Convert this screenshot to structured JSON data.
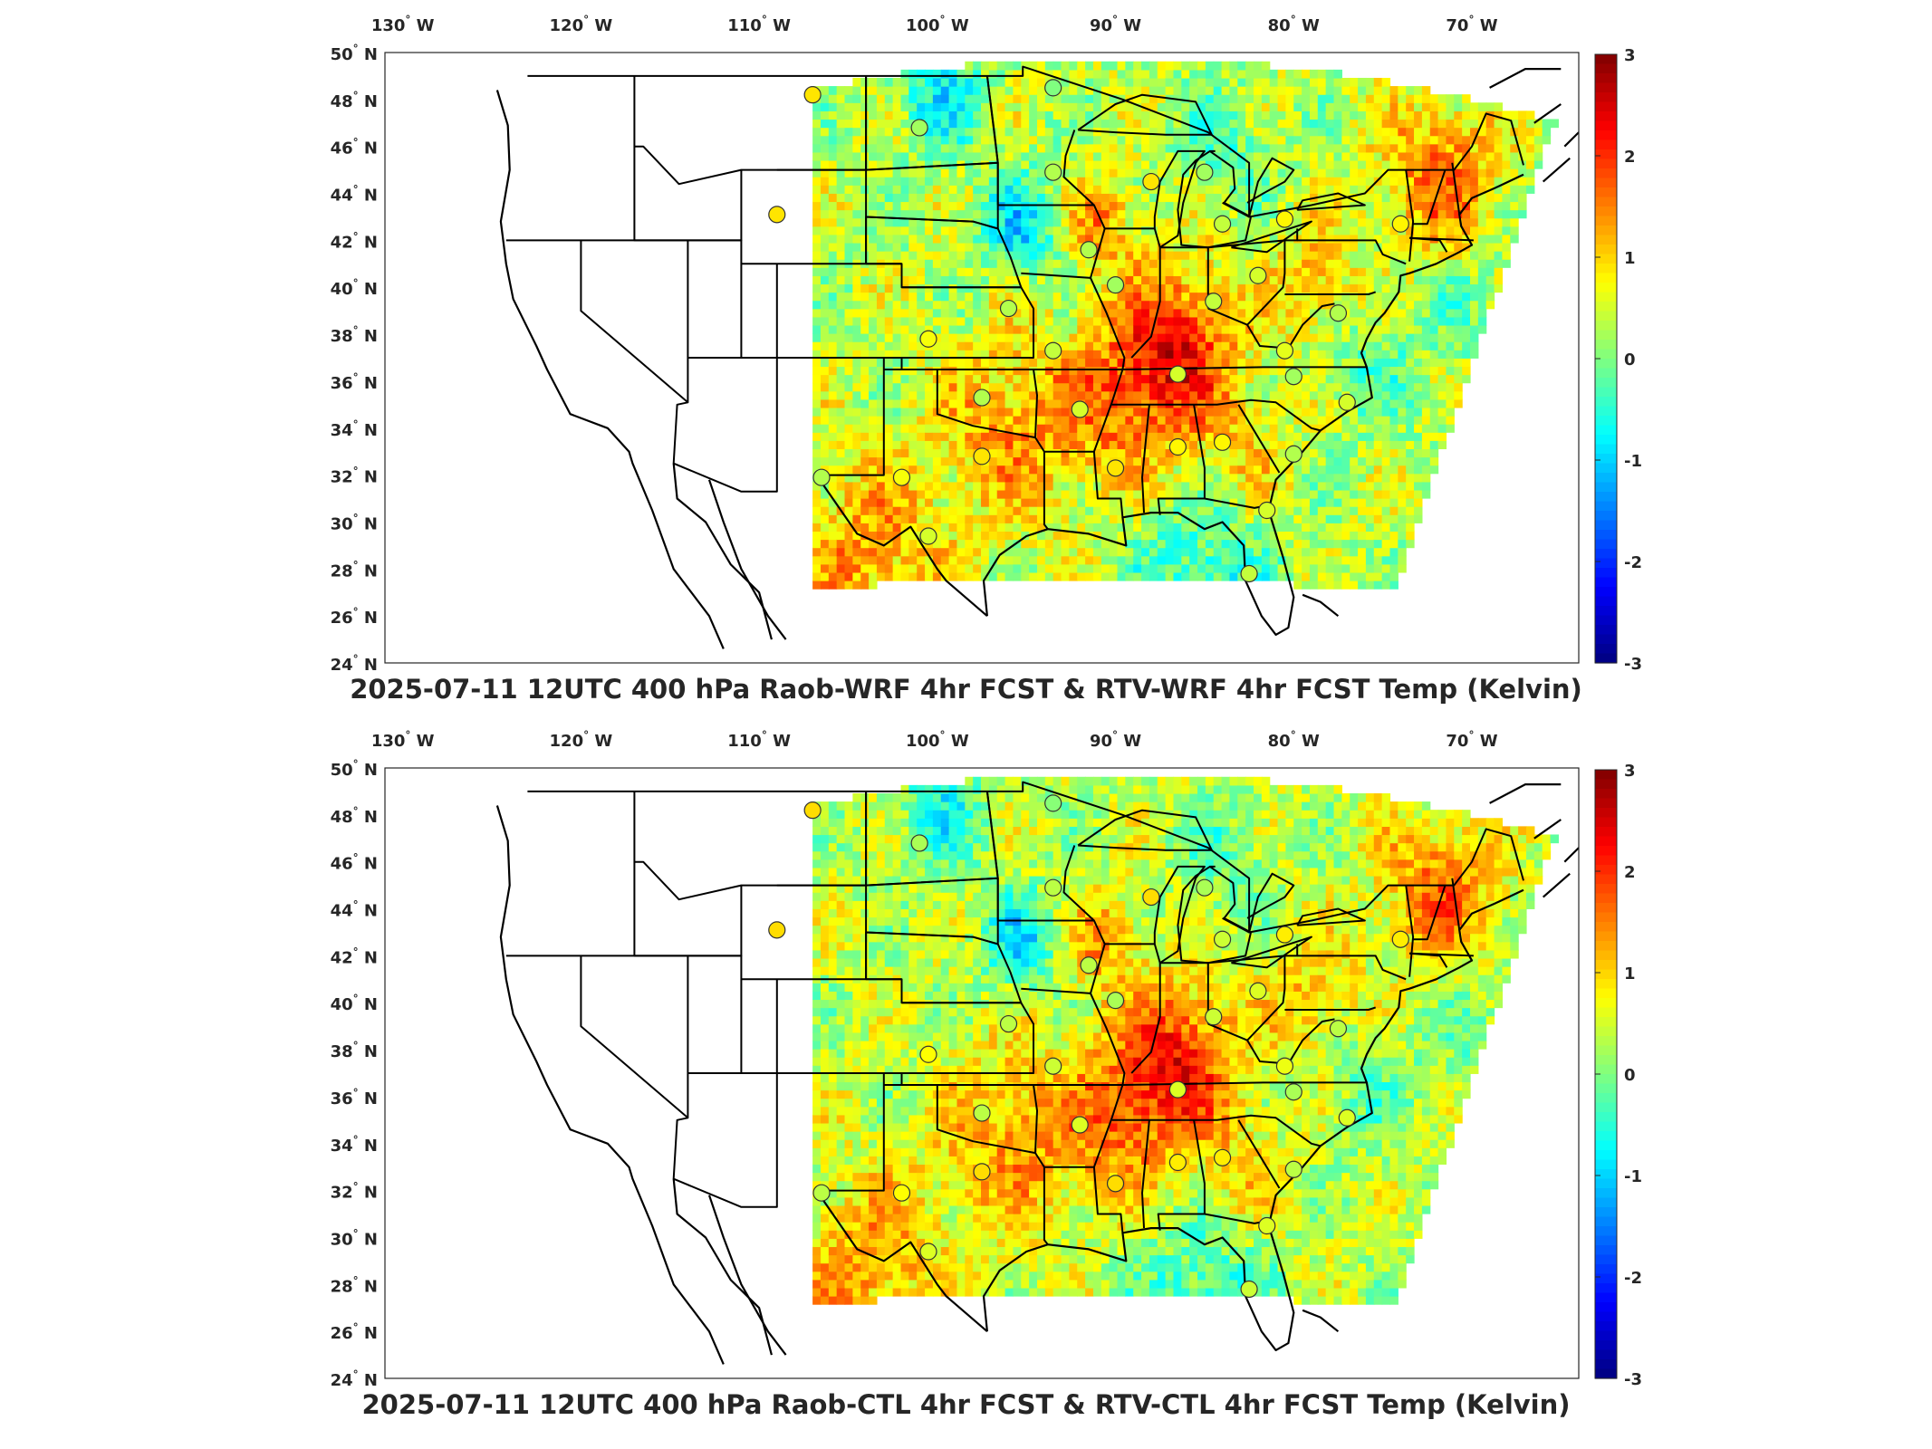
{
  "panels": [
    {
      "title": "2025-07-11 12UTC 400 hPa Raob-WRF 4hr FCST & RTV-WRF 4hr FCST Temp (Kelvin)",
      "seed": 11
    },
    {
      "title": "2025-07-11 12UTC 400 hPa Raob-CTL 4hr FCST & RTV-CTL 4hr FCST Temp (Kelvin)",
      "seed": 29
    }
  ],
  "lon_ticks": [
    {
      "value": -130,
      "label": "130 W"
    },
    {
      "value": -120,
      "label": "120 W"
    },
    {
      "value": -110,
      "label": "110 W"
    },
    {
      "value": -100,
      "label": "100 W"
    },
    {
      "value": -90,
      "label": "90 W"
    },
    {
      "value": -80,
      "label": "80 W"
    },
    {
      "value": -70,
      "label": "70 W"
    }
  ],
  "lat_ticks": [
    {
      "value": 50,
      "label": "50 N"
    },
    {
      "value": 48,
      "label": "48 N"
    },
    {
      "value": 46,
      "label": "46 N"
    },
    {
      "value": 44,
      "label": "44 N"
    },
    {
      "value": 42,
      "label": "42 N"
    },
    {
      "value": 40,
      "label": "40 N"
    },
    {
      "value": 38,
      "label": "38 N"
    },
    {
      "value": 36,
      "label": "36 N"
    },
    {
      "value": 34,
      "label": "34 N"
    },
    {
      "value": 32,
      "label": "32 N"
    },
    {
      "value": 30,
      "label": "30 N"
    },
    {
      "value": 28,
      "label": "28 N"
    },
    {
      "value": 26,
      "label": "26 N"
    },
    {
      "value": 24,
      "label": "24 N"
    }
  ],
  "colorbar": {
    "colormap": "jet",
    "min": -3,
    "max": 3,
    "ticks": [
      "3",
      "2",
      "1",
      "0",
      "-1",
      "-2",
      "-3"
    ]
  },
  "map_extent": {
    "lon": [
      -131,
      -64
    ],
    "lat": [
      24,
      50
    ]
  },
  "raob_stations": [
    {
      "lon": -107,
      "lat": 48.2,
      "value": 0.9
    },
    {
      "lon": -109,
      "lat": 43.1,
      "value": 0.9
    },
    {
      "lon": -101,
      "lat": 46.8,
      "value": 0.2
    },
    {
      "lon": -93.5,
      "lat": 48.5,
      "value": 0.0
    },
    {
      "lon": -93.5,
      "lat": 44.9,
      "value": 0.3
    },
    {
      "lon": -88,
      "lat": 44.5,
      "value": 0.9
    },
    {
      "lon": -85,
      "lat": 44.9,
      "value": 0.2
    },
    {
      "lon": -84,
      "lat": 42.7,
      "value": 0.4
    },
    {
      "lon": -80.5,
      "lat": 42.9,
      "value": 0.8
    },
    {
      "lon": -74,
      "lat": 42.7,
      "value": 0.8
    },
    {
      "lon": -91.5,
      "lat": 41.6,
      "value": 0.3
    },
    {
      "lon": -90,
      "lat": 40.1,
      "value": 0.2
    },
    {
      "lon": -96,
      "lat": 39.1,
      "value": 0.3
    },
    {
      "lon": -100.5,
      "lat": 37.8,
      "value": 0.7
    },
    {
      "lon": -93.5,
      "lat": 37.3,
      "value": 0.4
    },
    {
      "lon": -86.5,
      "lat": 36.3,
      "value": 0.5
    },
    {
      "lon": -84.5,
      "lat": 39.4,
      "value": 0.4
    },
    {
      "lon": -82,
      "lat": 40.5,
      "value": 0.5
    },
    {
      "lon": -80.5,
      "lat": 37.3,
      "value": 0.6
    },
    {
      "lon": -80,
      "lat": 36.2,
      "value": 0.2
    },
    {
      "lon": -77,
      "lat": 35.1,
      "value": 0.5
    },
    {
      "lon": -97.5,
      "lat": 35.3,
      "value": 0.3
    },
    {
      "lon": -92,
      "lat": 34.8,
      "value": 0.5
    },
    {
      "lon": -97.5,
      "lat": 32.8,
      "value": 0.9
    },
    {
      "lon": -90,
      "lat": 32.3,
      "value": 0.9
    },
    {
      "lon": -86.5,
      "lat": 33.2,
      "value": 0.8
    },
    {
      "lon": -84,
      "lat": 33.4,
      "value": 0.8
    },
    {
      "lon": -80,
      "lat": 32.9,
      "value": 0.3
    },
    {
      "lon": -81.5,
      "lat": 30.5,
      "value": 0.5
    },
    {
      "lon": -82.5,
      "lat": 27.8,
      "value": 0.4
    },
    {
      "lon": -102,
      "lat": 31.9,
      "value": 0.7
    },
    {
      "lon": -106.5,
      "lat": 31.9,
      "value": 0.3
    },
    {
      "lon": -100.5,
      "lat": 29.4,
      "value": 0.5
    },
    {
      "lon": -77.5,
      "lat": 38.9,
      "value": 0.3
    }
  ]
}
